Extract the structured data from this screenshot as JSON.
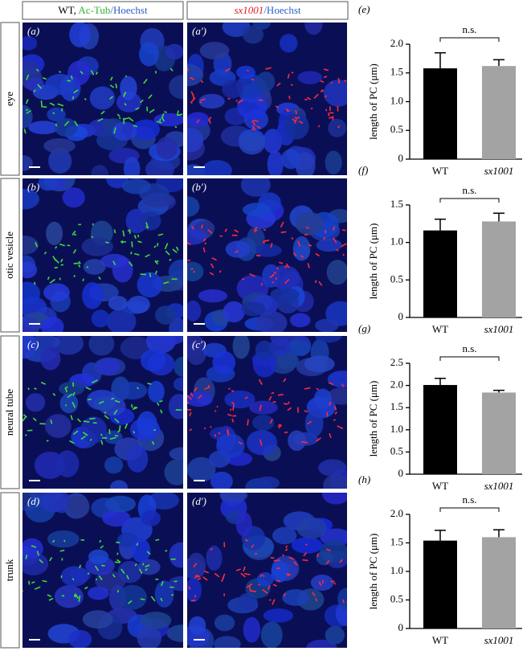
{
  "figure": {
    "header_left": [
      "WT, ",
      "Ac-Tub",
      "/Hoechst"
    ],
    "header_right": [
      "sx1001",
      "/Hoechst"
    ],
    "rows": [
      {
        "label": "eye",
        "panels": [
          "(a)",
          "(a′)"
        ]
      },
      {
        "label": "otic vesicle",
        "panels": [
          "(b)",
          "(b′)"
        ]
      },
      {
        "label": "neural tube",
        "panels": [
          "(c)",
          "(c′)"
        ]
      },
      {
        "label": "trunk",
        "panels": [
          "(d)",
          "(d′)"
        ]
      }
    ]
  },
  "chart_data": [
    {
      "type": "bar",
      "panel_label": "(e)",
      "ylabel": "length of PC (μm)",
      "annotation": "n.s.",
      "categories": [
        "WT",
        "sx1001"
      ],
      "colors": [
        "#000000",
        "#a3a3a3"
      ],
      "values": [
        1.58,
        1.62
      ],
      "errors": [
        0.27,
        0.11
      ],
      "ylim": [
        0,
        2
      ],
      "yticks": [
        0,
        0.5,
        {
          "value": 1,
          "label": "1.0"
        },
        1.5,
        {
          "value": 2,
          "label": "2.0"
        }
      ]
    },
    {
      "type": "bar",
      "panel_label": "(f)",
      "ylabel": "length of PC (μm)",
      "annotation": "n.s.",
      "categories": [
        "WT",
        "sx1001"
      ],
      "colors": [
        "#000000",
        "#a3a3a3"
      ],
      "values": [
        1.16,
        1.28
      ],
      "errors": [
        0.15,
        0.11
      ],
      "ylim": [
        0,
        1.5
      ],
      "yticks": [
        0,
        0.5,
        {
          "value": 1,
          "label": "1.0"
        },
        1.5
      ]
    },
    {
      "type": "bar",
      "panel_label": "(g)",
      "ylabel": "length of PC (μm)",
      "annotation": "n.s.",
      "categories": [
        "WT",
        "sx1001"
      ],
      "colors": [
        "#000000",
        "#a3a3a3"
      ],
      "values": [
        2.01,
        1.84
      ],
      "errors": [
        0.15,
        0.05
      ],
      "ylim": [
        0,
        2.5
      ],
      "yticks": [
        0,
        0.5,
        {
          "value": 1,
          "label": "1.0"
        },
        1.5,
        {
          "value": 2,
          "label": "2.0"
        },
        2.5
      ]
    },
    {
      "type": "bar",
      "panel_label": "(h)",
      "ylabel": "length of PC (μm)",
      "annotation": "n.s.",
      "categories": [
        "WT",
        "sx1001"
      ],
      "colors": [
        "#000000",
        "#a3a3a3"
      ],
      "values": [
        1.54,
        1.6
      ],
      "errors": [
        0.18,
        0.13
      ],
      "ylim": [
        0,
        2
      ],
      "yticks": [
        0,
        0.5,
        {
          "value": 1,
          "label": "1.0"
        },
        1.5,
        {
          "value": 2,
          "label": "2.0"
        }
      ]
    }
  ]
}
